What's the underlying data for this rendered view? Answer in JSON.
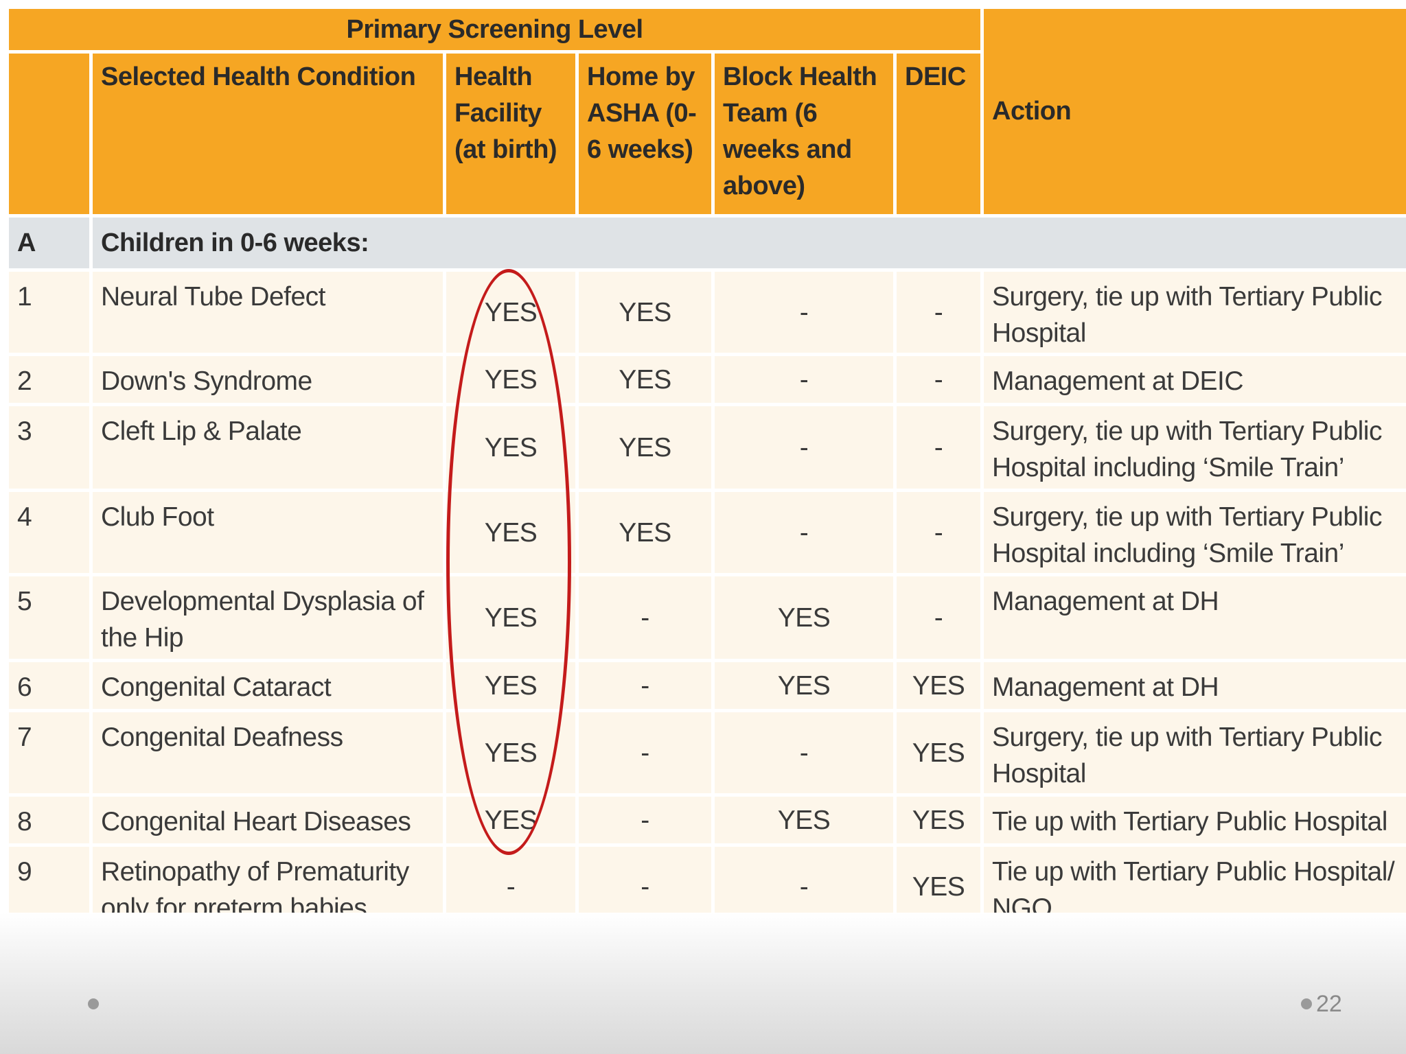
{
  "table": {
    "group_header": "Primary Screening Level",
    "headers": {
      "number": "",
      "condition": "Selected Health Condition",
      "health_facility": "Health Facility (at birth)",
      "home_asha": "Home by ASHA (0-6 weeks)",
      "block_team": "Block Health Team (6 weeks and above)",
      "deic": "DEIC",
      "action": "Action"
    },
    "section": {
      "id": "A",
      "label": "Children in 0-6 weeks:"
    },
    "rows": [
      {
        "no": "1",
        "condition": "Neural Tube Defect",
        "health_facility": "YES",
        "home_asha": "YES",
        "block_team": "-",
        "deic": "-",
        "action": "Surgery, tie up with Tertiary Public Hospital"
      },
      {
        "no": "2",
        "condition": "Down's Syndrome",
        "health_facility": "YES",
        "home_asha": "YES",
        "block_team": "-",
        "deic": "-",
        "action": "Management at DEIC"
      },
      {
        "no": "3",
        "condition": "Cleft Lip & Palate",
        "health_facility": "YES",
        "home_asha": "YES",
        "block_team": "-",
        "deic": "-",
        "action": "Surgery, tie up with Tertiary Public Hospital including ‘Smile Train’"
      },
      {
        "no": "4",
        "condition": "Club Foot",
        "health_facility": "YES",
        "home_asha": "YES",
        "block_team": "-",
        "deic": "-",
        "action": "Surgery, tie up with Tertiary Public Hospital including ‘Smile Train’"
      },
      {
        "no": "5",
        "condition": "Developmental Dysplasia of the Hip",
        "health_facility": "YES",
        "home_asha": "-",
        "block_team": "YES",
        "deic": "-",
        "action": "Management at DH"
      },
      {
        "no": "6",
        "condition": "Congenital Cataract",
        "health_facility": "YES",
        "home_asha": "-",
        "block_team": "YES",
        "deic": "YES",
        "action": "Management at DH"
      },
      {
        "no": "7",
        "condition": "Congenital Deafness",
        "health_facility": "YES",
        "home_asha": "-",
        "block_team": "-",
        "deic": "YES",
        "action": "Surgery, tie up with Tertiary Public Hospital"
      },
      {
        "no": "8",
        "condition": "Congenital Heart Diseases",
        "health_facility": "YES",
        "home_asha": "-",
        "block_team": "YES",
        "deic": "YES",
        "action": "Tie up with Tertiary Public Hospital"
      },
      {
        "no": "9",
        "condition": "Retinopathy of Prematurity only for preterm babies",
        "health_facility": "-",
        "home_asha": "-",
        "block_team": "-",
        "deic": "YES",
        "action": "Tie up with Tertiary Public Hospital/ NGO"
      }
    ]
  },
  "footer": {
    "page_number": "22"
  },
  "colors": {
    "header_bg": "#f6a623",
    "section_bg": "#dfe3e6",
    "row_bg": "#fdf6ea",
    "highlight_oval": "#c41b1b"
  }
}
